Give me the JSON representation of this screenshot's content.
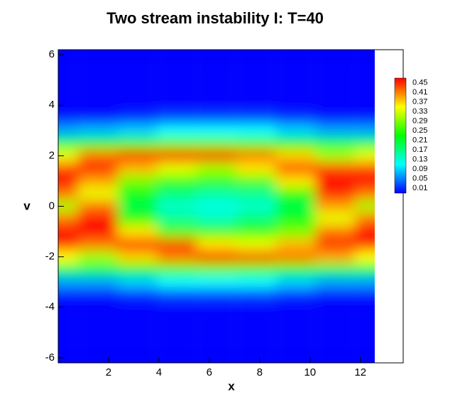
{
  "chart_data": {
    "type": "contour",
    "title": "Two stream instability I: T=40",
    "xlabel": "x",
    "ylabel": "v",
    "xlim": [
      0,
      13.7
    ],
    "ylim": [
      -6.2,
      6.2
    ],
    "xticks": [
      2,
      4,
      6,
      8,
      10,
      12
    ],
    "yticks": [
      -6,
      -4,
      -2,
      0,
      2,
      4,
      6
    ],
    "x": [
      0,
      1.57,
      3.14,
      4.71,
      6.28,
      7.85,
      9.42,
      11.0,
      12.57
    ],
    "y": [
      -6,
      -5.5,
      -5,
      -4.5,
      -4,
      -3.5,
      -3,
      -2.5,
      -2,
      -1.5,
      -1,
      -0.5,
      0,
      0.5,
      1,
      1.5,
      2,
      2.5,
      3,
      3.5,
      4,
      4.5,
      5,
      5.5,
      6
    ],
    "z": [
      [
        0.01,
        0.01,
        0.01,
        0.01,
        0.01,
        0.01,
        0.01,
        0.01,
        0.01
      ],
      [
        0.01,
        0.01,
        0.01,
        0.01,
        0.01,
        0.01,
        0.01,
        0.01,
        0.01
      ],
      [
        0.01,
        0.01,
        0.01,
        0.01,
        0.01,
        0.01,
        0.01,
        0.01,
        0.01
      ],
      [
        0.01,
        0.01,
        0.01,
        0.01,
        0.01,
        0.01,
        0.01,
        0.01,
        0.01
      ],
      [
        0.01,
        0.01,
        0.01,
        0.01,
        0.01,
        0.01,
        0.01,
        0.01,
        0.01
      ],
      [
        0.02,
        0.02,
        0.03,
        0.04,
        0.04,
        0.04,
        0.03,
        0.02,
        0.02
      ],
      [
        0.08,
        0.08,
        0.1,
        0.12,
        0.12,
        0.12,
        0.1,
        0.08,
        0.08
      ],
      [
        0.2,
        0.2,
        0.23,
        0.26,
        0.27,
        0.26,
        0.23,
        0.2,
        0.2
      ],
      [
        0.34,
        0.3,
        0.36,
        0.4,
        0.44,
        0.42,
        0.4,
        0.38,
        0.34
      ],
      [
        0.43,
        0.4,
        0.44,
        0.42,
        0.35,
        0.33,
        0.37,
        0.43,
        0.43
      ],
      [
        0.45,
        0.45,
        0.35,
        0.26,
        0.25,
        0.25,
        0.28,
        0.4,
        0.45
      ],
      [
        0.4,
        0.44,
        0.24,
        0.17,
        0.15,
        0.18,
        0.22,
        0.33,
        0.4
      ],
      [
        0.3,
        0.4,
        0.2,
        0.14,
        0.13,
        0.14,
        0.2,
        0.38,
        0.3
      ],
      [
        0.4,
        0.33,
        0.22,
        0.18,
        0.16,
        0.17,
        0.24,
        0.43,
        0.4
      ],
      [
        0.45,
        0.38,
        0.28,
        0.25,
        0.25,
        0.26,
        0.35,
        0.45,
        0.45
      ],
      [
        0.42,
        0.44,
        0.37,
        0.33,
        0.3,
        0.35,
        0.42,
        0.42,
        0.42
      ],
      [
        0.33,
        0.4,
        0.44,
        0.45,
        0.44,
        0.4,
        0.36,
        0.3,
        0.33
      ],
      [
        0.2,
        0.22,
        0.25,
        0.27,
        0.27,
        0.26,
        0.23,
        0.2,
        0.2
      ],
      [
        0.08,
        0.09,
        0.1,
        0.12,
        0.12,
        0.12,
        0.1,
        0.08,
        0.08
      ],
      [
        0.02,
        0.02,
        0.03,
        0.04,
        0.04,
        0.04,
        0.03,
        0.02,
        0.02
      ],
      [
        0.01,
        0.01,
        0.01,
        0.01,
        0.01,
        0.01,
        0.01,
        0.01,
        0.01
      ],
      [
        0.01,
        0.01,
        0.01,
        0.01,
        0.01,
        0.01,
        0.01,
        0.01,
        0.01
      ],
      [
        0.01,
        0.01,
        0.01,
        0.01,
        0.01,
        0.01,
        0.01,
        0.01,
        0.01
      ],
      [
        0.01,
        0.01,
        0.01,
        0.01,
        0.01,
        0.01,
        0.01,
        0.01,
        0.01
      ],
      [
        0.01,
        0.01,
        0.01,
        0.01,
        0.01,
        0.01,
        0.01,
        0.01,
        0.01
      ]
    ],
    "colormap": [
      "#0000ff",
      "#00ffff",
      "#00ff00",
      "#ffff00",
      "#ff0000"
    ],
    "colorbar_ticks": [
      0.01,
      0.05,
      0.09,
      0.13,
      0.17,
      0.21,
      0.25,
      0.29,
      0.33,
      0.37,
      0.41,
      0.45
    ]
  }
}
